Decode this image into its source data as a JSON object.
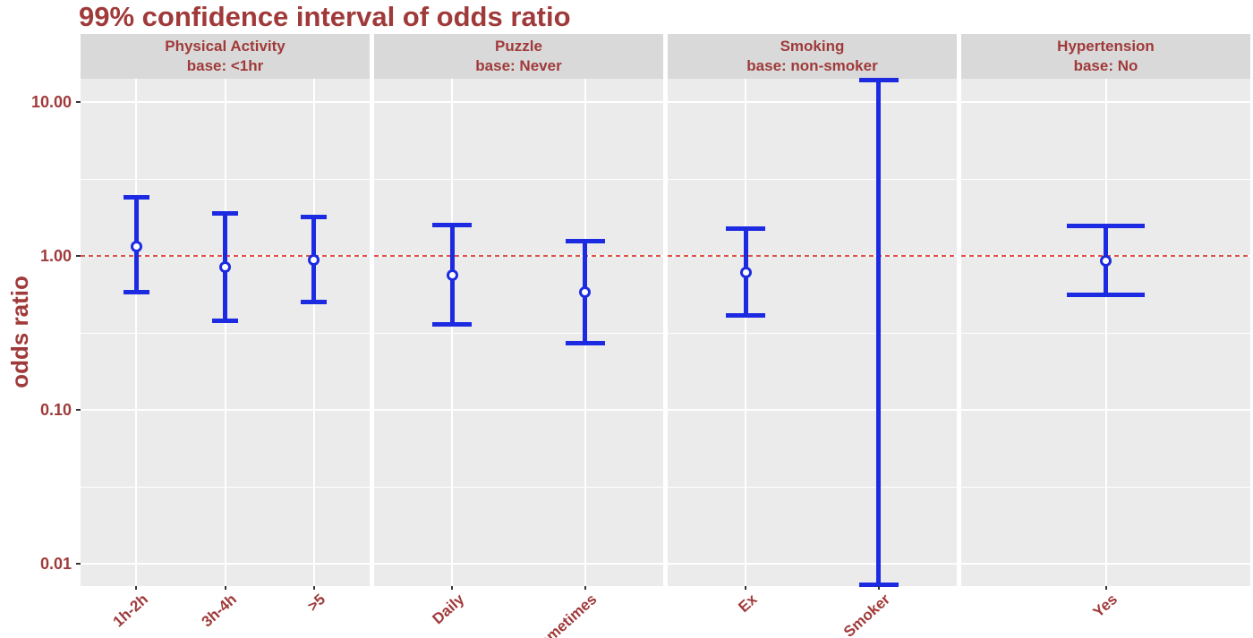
{
  "colors": {
    "text_dark_red": "#a03a3a",
    "bar_blue": "#1c2be2",
    "ref_line_red": "#e05048",
    "panel_bg": "#ebebeb",
    "strip_bg": "#d9d9d9",
    "gridline": "#ffffff",
    "tick_mark": "#333333"
  },
  "chart_data": {
    "type": "errorbar",
    "title": "99% confidence interval of odds ratio",
    "ylabel": "odds ratio",
    "xlabel": "",
    "yscale": "log10",
    "ylim": [
      0.007,
      14.2
    ],
    "grid": "on",
    "legend": "none",
    "yticks": [
      {
        "value": 10,
        "label": "10.00"
      },
      {
        "value": 1,
        "label": "1.00"
      },
      {
        "value": 0.1,
        "label": "0.10"
      },
      {
        "value": 0.01,
        "label": "0.01"
      }
    ],
    "minor_gridline_values": [
      3.162,
      0.3162,
      0.03162
    ],
    "reference_line_value": 1.0,
    "facets": [
      {
        "label": "Physical Activity",
        "base_label": "base: <1hr",
        "points": [
          {
            "category": "1h-2h",
            "odds_ratio": 1.15,
            "ci_low": 0.58,
            "ci_high": 2.4
          },
          {
            "category": "3h-4h",
            "odds_ratio": 0.85,
            "ci_low": 0.38,
            "ci_high": 1.9
          },
          {
            "category": ">5",
            "odds_ratio": 0.94,
            "ci_low": 0.5,
            "ci_high": 1.8
          }
        ]
      },
      {
        "label": "Puzzle",
        "base_label": "base: Never",
        "points": [
          {
            "category": "Daily",
            "odds_ratio": 0.75,
            "ci_low": 0.36,
            "ci_high": 1.58
          },
          {
            "category": "Sometimes",
            "odds_ratio": 0.58,
            "ci_low": 0.27,
            "ci_high": 1.25
          }
        ]
      },
      {
        "label": "Smoking",
        "base_label": "base: non-smoker",
        "points": [
          {
            "category": "Ex",
            "odds_ratio": 0.78,
            "ci_low": 0.41,
            "ci_high": 1.5
          },
          {
            "category": "Smoker",
            "odds_ratio": null,
            "ci_low": 0.0073,
            "ci_high": 13.8
          }
        ]
      },
      {
        "label": "Hypertension",
        "base_label": "base: No",
        "points": [
          {
            "category": "Yes",
            "odds_ratio": 0.93,
            "ci_low": 0.56,
            "ci_high": 1.57
          }
        ]
      }
    ]
  }
}
